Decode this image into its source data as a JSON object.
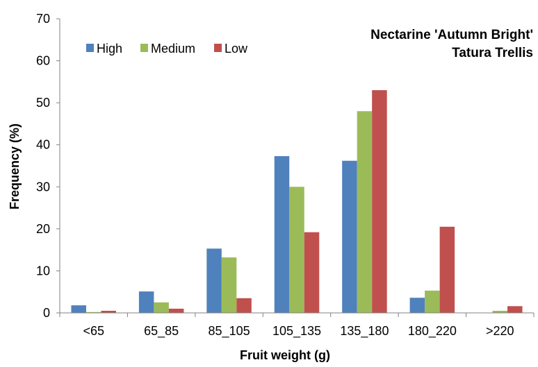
{
  "chart_data": {
    "type": "bar",
    "title": [
      "Nectarine 'Autumn Bright'",
      "Tatura Trellis"
    ],
    "xlabel": "Fruit weight (g)",
    "ylabel": "Frequency (%)",
    "ylim": [
      0,
      70
    ],
    "yticks": [
      0,
      10,
      20,
      30,
      40,
      50,
      60,
      70
    ],
    "grid": false,
    "legend_position": "top-left",
    "categories": [
      "<65",
      "65_85",
      "85_105",
      "105_135",
      "135_180",
      "180_220",
      ">220"
    ],
    "series": [
      {
        "name": "High",
        "color": "#4F81BD",
        "values": [
          1.8,
          5.1,
          15.3,
          37.3,
          36.2,
          3.6,
          0.0
        ]
      },
      {
        "name": "Medium",
        "color": "#9BBB59",
        "values": [
          0.2,
          2.5,
          13.2,
          30.0,
          48.0,
          5.3,
          0.5
        ]
      },
      {
        "name": "Low",
        "color": "#C0504D",
        "values": [
          0.5,
          1.0,
          3.5,
          19.2,
          53.0,
          20.5,
          1.6
        ]
      }
    ]
  }
}
